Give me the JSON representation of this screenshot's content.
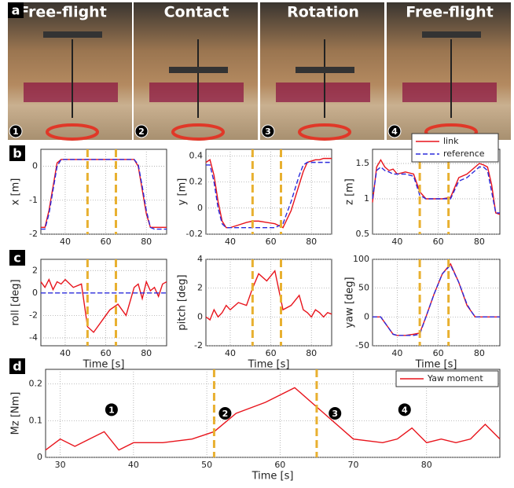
{
  "panel_labels": [
    "a",
    "b",
    "c",
    "d"
  ],
  "photos": [
    {
      "title": "Free-flight",
      "number": "1"
    },
    {
      "title": "Contact",
      "number": "2"
    },
    {
      "title": "Rotation",
      "number": "3"
    },
    {
      "title": "Free-flight",
      "number": "4"
    }
  ],
  "chart_data": [
    {
      "type": "line",
      "ylabel": "x [m]",
      "x": [
        28,
        30,
        32,
        34,
        36,
        38,
        40,
        44,
        48,
        51,
        54,
        58,
        62,
        66,
        70,
        74,
        76,
        78,
        80,
        82,
        84,
        86,
        88,
        90
      ],
      "series": [
        {
          "color": "#e8141c",
          "values": [
            -1.8,
            -1.8,
            -1.3,
            -0.6,
            0.1,
            0.2,
            0.2,
            0.2,
            0.2,
            0.2,
            0.2,
            0.2,
            0.2,
            0.2,
            0.2,
            0.2,
            0.0,
            -0.7,
            -1.4,
            -1.8,
            -1.8,
            -1.8,
            -1.8,
            -1.8
          ]
        },
        {
          "color": "#2b2bdc",
          "dash": true,
          "values": [
            -1.85,
            -1.85,
            -1.4,
            -0.7,
            0.0,
            0.2,
            0.2,
            0.2,
            0.2,
            0.2,
            0.2,
            0.2,
            0.2,
            0.2,
            0.2,
            0.2,
            0.05,
            -0.6,
            -1.3,
            -1.8,
            -1.85,
            -1.85,
            -1.85,
            -1.85
          ]
        }
      ],
      "xlim": [
        28,
        90
      ],
      "ylim": [
        -2,
        0.5
      ],
      "xticks": [
        40,
        60,
        80
      ],
      "yticks": [
        -2,
        -1,
        0
      ],
      "grid": true,
      "events": [
        51,
        65
      ]
    },
    {
      "type": "line",
      "ylabel": "y [m]",
      "x": [
        28,
        30,
        32,
        34,
        36,
        38,
        40,
        44,
        48,
        51,
        54,
        58,
        62,
        66,
        70,
        74,
        76,
        78,
        80,
        82,
        84,
        86,
        88,
        90
      ],
      "series": [
        {
          "color": "#e8141c",
          "values": [
            0.35,
            0.37,
            0.25,
            0.05,
            -0.1,
            -0.15,
            -0.15,
            -0.13,
            -0.11,
            -0.1,
            -0.1,
            -0.11,
            -0.12,
            -0.15,
            -0.02,
            0.18,
            0.28,
            0.35,
            0.36,
            0.37,
            0.37,
            0.38,
            0.38,
            0.38
          ]
        },
        {
          "color": "#2b2bdc",
          "dash": true,
          "values": [
            0.33,
            0.33,
            0.2,
            0.0,
            -0.12,
            -0.15,
            -0.15,
            -0.15,
            -0.15,
            -0.15,
            -0.15,
            -0.15,
            -0.15,
            -0.12,
            0.05,
            0.25,
            0.33,
            0.35,
            0.35,
            0.35,
            0.35,
            0.35,
            0.35,
            0.35
          ]
        }
      ],
      "xlim": [
        28,
        90
      ],
      "ylim": [
        -0.2,
        0.45
      ],
      "xticks": [
        40,
        60,
        80
      ],
      "yticks": [
        -0.2,
        0,
        0.2,
        0.4
      ],
      "grid": true,
      "events": [
        51,
        65
      ]
    },
    {
      "type": "line",
      "ylabel": "z [m]",
      "x": [
        28,
        30,
        32,
        34,
        36,
        38,
        40,
        44,
        48,
        51,
        54,
        58,
        62,
        66,
        70,
        74,
        76,
        78,
        80,
        82,
        84,
        86,
        88,
        90
      ],
      "series": [
        {
          "name": "link",
          "color": "#e8141c",
          "values": [
            0.95,
            1.45,
            1.55,
            1.45,
            1.4,
            1.42,
            1.35,
            1.38,
            1.35,
            1.1,
            1.0,
            1.0,
            1.0,
            1.02,
            1.3,
            1.35,
            1.4,
            1.45,
            1.5,
            1.48,
            1.45,
            1.2,
            0.8,
            0.78
          ]
        },
        {
          "name": "reference",
          "color": "#2b2bdc",
          "dash": true,
          "values": [
            1.0,
            1.4,
            1.45,
            1.4,
            1.38,
            1.35,
            1.35,
            1.35,
            1.32,
            1.05,
            1.0,
            1.0,
            1.0,
            1.0,
            1.25,
            1.3,
            1.35,
            1.4,
            1.45,
            1.45,
            1.4,
            1.1,
            0.8,
            0.8
          ]
        }
      ],
      "xlim": [
        28,
        90
      ],
      "ylim": [
        0.5,
        1.7
      ],
      "xticks": [
        40,
        60,
        80
      ],
      "yticks": [
        0.5,
        1,
        1.5
      ],
      "grid": true,
      "events": [
        51,
        65
      ],
      "legend": "upper right"
    },
    {
      "type": "line",
      "ylabel": "roll [deg]",
      "xlabel": "Time [s]",
      "x": [
        28,
        30,
        32,
        34,
        36,
        38,
        40,
        44,
        48,
        51,
        54,
        58,
        62,
        66,
        70,
        74,
        76,
        78,
        80,
        82,
        84,
        86,
        88,
        90
      ],
      "series": [
        {
          "color": "#e8141c",
          "values": [
            1,
            0.5,
            1.2,
            0.3,
            1,
            0.8,
            1.2,
            0.5,
            0.8,
            -3,
            -3.5,
            -2.5,
            -1.5,
            -1,
            -2,
            0.5,
            0.8,
            -0.5,
            1,
            0.2,
            0.5,
            -0.3,
            0.8,
            1
          ]
        },
        {
          "color": "#2b2bdc",
          "dash": true,
          "values": [
            0,
            0,
            0,
            0,
            0,
            0,
            0,
            0,
            0,
            0,
            0,
            0,
            0,
            0,
            0,
            0,
            0,
            0,
            0,
            0,
            0,
            0,
            0,
            0
          ]
        }
      ],
      "xlim": [
        28,
        90
      ],
      "ylim": [
        -4.7,
        3
      ],
      "xticks": [
        40,
        60,
        80
      ],
      "yticks": [
        -4,
        -2,
        0,
        2
      ],
      "grid": true,
      "events": [
        51,
        65
      ]
    },
    {
      "type": "line",
      "ylabel": "pitch [deg]",
      "xlabel": "Time [s]",
      "x": [
        28,
        30,
        32,
        34,
        36,
        38,
        40,
        44,
        48,
        51,
        54,
        58,
        62,
        66,
        70,
        74,
        76,
        78,
        80,
        82,
        84,
        86,
        88,
        90
      ],
      "series": [
        {
          "color": "#e8141c",
          "values": [
            0,
            -0.2,
            0.5,
            0,
            0.3,
            0.8,
            0.5,
            1,
            0.8,
            2,
            3,
            2.5,
            3.2,
            0.5,
            0.8,
            1.5,
            0.5,
            0.3,
            0,
            0.5,
            0.3,
            0,
            0.3,
            0.2
          ]
        }
      ],
      "xlim": [
        28,
        90
      ],
      "ylim": [
        -2,
        4
      ],
      "xticks": [
        40,
        60,
        80
      ],
      "yticks": [
        -2,
        0,
        2,
        4
      ],
      "grid": true,
      "events": [
        51,
        65
      ]
    },
    {
      "type": "line",
      "ylabel": "yaw [deg]",
      "xlabel": "Time [s]",
      "x": [
        28,
        30,
        32,
        34,
        36,
        38,
        40,
        44,
        48,
        51,
        54,
        58,
        62,
        66,
        70,
        74,
        76,
        78,
        80,
        82,
        84,
        86,
        88,
        90
      ],
      "series": [
        {
          "color": "#e8141c",
          "values": [
            0,
            0,
            0,
            -10,
            -20,
            -30,
            -32,
            -32,
            -30,
            -28,
            0,
            40,
            75,
            92,
            60,
            20,
            10,
            0,
            0,
            0,
            0,
            0,
            0,
            0
          ]
        },
        {
          "color": "#2b2bdc",
          "dash": true,
          "values": [
            0,
            0,
            0,
            -10,
            -20,
            -30,
            -32,
            -32,
            -32,
            -30,
            0,
            40,
            75,
            90,
            60,
            22,
            10,
            0,
            0,
            0,
            0,
            0,
            0,
            0
          ]
        }
      ],
      "xlim": [
        28,
        90
      ],
      "ylim": [
        -50,
        100
      ],
      "xticks": [
        40,
        60,
        80
      ],
      "yticks": [
        -50,
        0,
        50,
        100
      ],
      "grid": true,
      "events": [
        51,
        65
      ]
    },
    {
      "type": "line",
      "ylabel": "Mz [Nm]",
      "xlabel": "Time [s]",
      "x": [
        28,
        30,
        32,
        34,
        36,
        38,
        40,
        44,
        48,
        51,
        54,
        58,
        62,
        66,
        70,
        74,
        76,
        78,
        80,
        82,
        84,
        86,
        88,
        90
      ],
      "series": [
        {
          "name": "Yaw moment",
          "color": "#e8141c",
          "values": [
            0.02,
            0.05,
            0.03,
            0.05,
            0.07,
            0.02,
            0.04,
            0.04,
            0.05,
            0.07,
            0.12,
            0.15,
            0.19,
            0.12,
            0.05,
            0.04,
            0.05,
            0.08,
            0.04,
            0.05,
            0.04,
            0.05,
            0.09,
            0.05
          ]
        }
      ],
      "xlim": [
        28,
        90
      ],
      "ylim": [
        0,
        0.24
      ],
      "xticks": [
        30,
        40,
        50,
        60,
        70,
        80
      ],
      "yticks": [
        0,
        0.1,
        0.2
      ],
      "grid": true,
      "events": [
        51,
        65
      ],
      "legend": "upper right",
      "annotations": [
        "1",
        "2",
        "3",
        "4"
      ]
    }
  ]
}
